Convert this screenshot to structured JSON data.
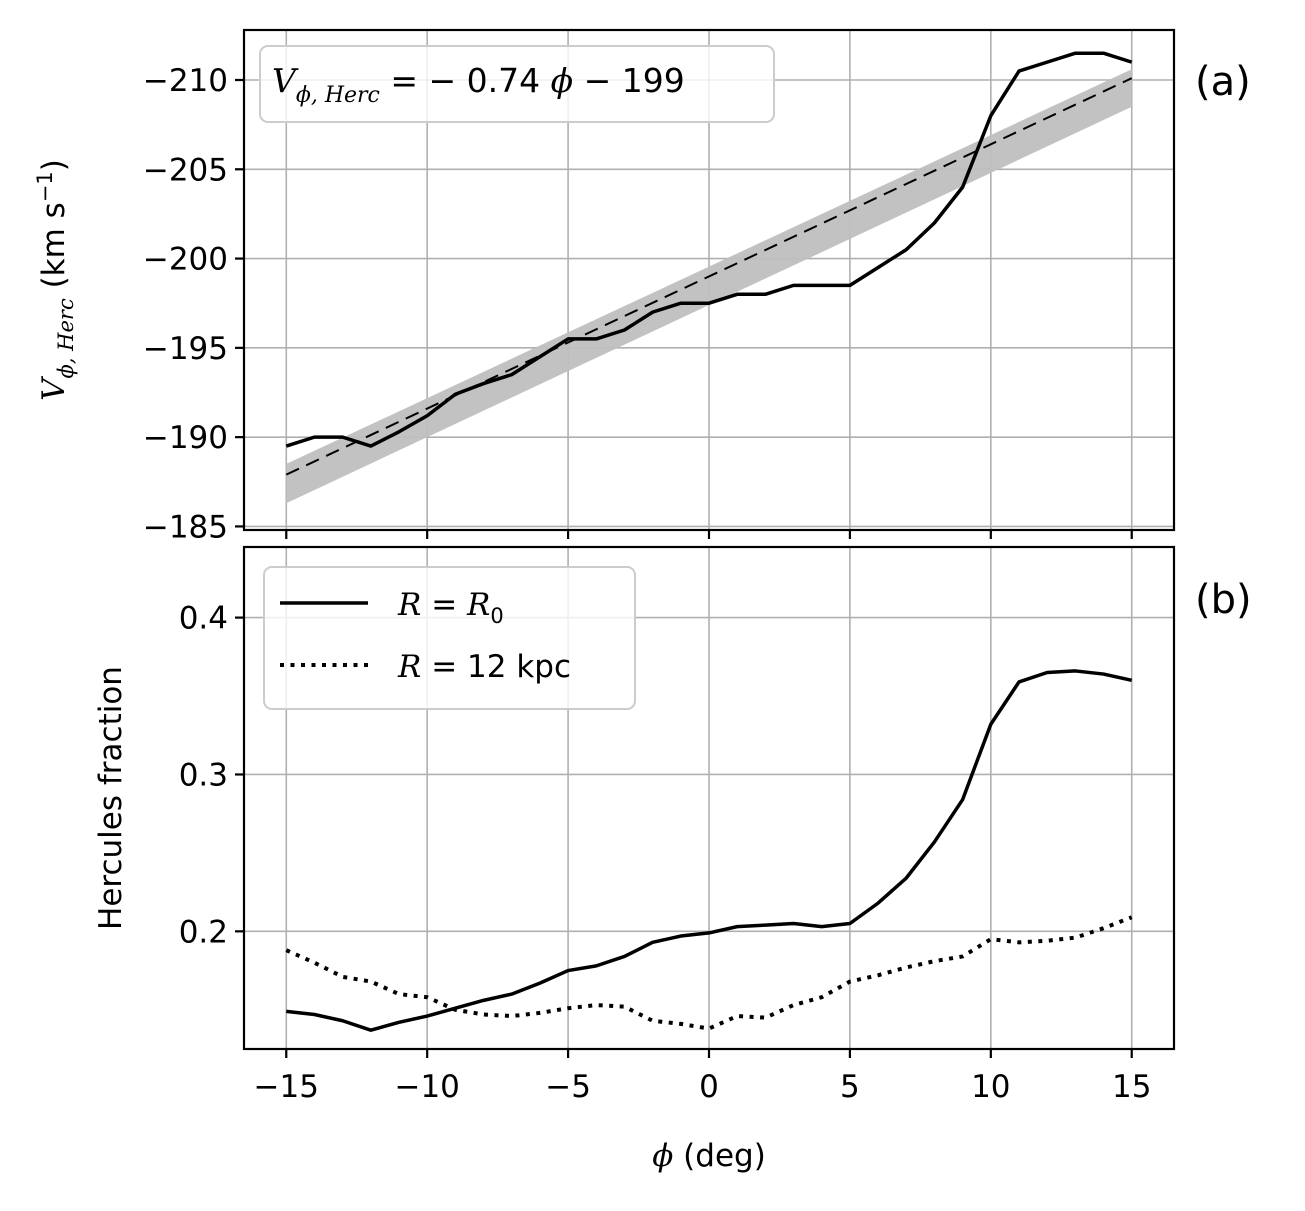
{
  "chart_data": [
    {
      "type": "line",
      "panel_tag": "(a)",
      "ylabel": "V_{ϕ, Herc} (km s⁻¹)",
      "ylabel_parts": {
        "symbol": "V",
        "sub": "ϕ, Herc",
        "units": " (km s",
        "sup": "−1",
        "close": ")"
      },
      "xlim": [
        -16.5,
        16.5
      ],
      "ylim": [
        -212.8,
        -184.8
      ],
      "y_inverted": true,
      "grid": true,
      "y_ticks": [
        -210,
        -205,
        -200,
        -195,
        -190,
        -185
      ],
      "y_tick_labels": [
        "−210",
        "−205",
        "−200",
        "−195",
        "−190",
        "−185"
      ],
      "x_ticks": [
        -15,
        -10,
        -5,
        0,
        5,
        10,
        15
      ],
      "annotation": {
        "parts": {
          "symbol": "V",
          "sub": "ϕ, Herc",
          "eq": " = − 0.74 ",
          "phi": "ϕ",
          "rest": " − 199"
        },
        "placement": "top-left"
      },
      "fit_line": {
        "slope": -0.74,
        "intercept": -199,
        "style": "dashed",
        "color": "#000000"
      },
      "fit_band": {
        "lower": [
          -188.5,
          -210.6
        ],
        "upper": [
          -186.3,
          -208.5
        ],
        "x_range": [
          -15,
          15
        ],
        "color": "#bfbfbf"
      },
      "series": [
        {
          "style": "solid",
          "color": "#000000",
          "x": [
            -15,
            -14,
            -13,
            -12,
            -11,
            -10,
            -9,
            -8,
            -7,
            -6,
            -5,
            -4,
            -3,
            -2,
            -1,
            0,
            1,
            2,
            3,
            4,
            5,
            6,
            7,
            8,
            9,
            10,
            11,
            12,
            13,
            14,
            15
          ],
          "y": [
            -189.5,
            -190,
            -190,
            -189.5,
            -190.3,
            -191.2,
            -192.4,
            -193,
            -193.5,
            -194.5,
            -195.5,
            -195.5,
            -196,
            -197,
            -197.5,
            -197.5,
            -198,
            -198,
            -198.5,
            -198.5,
            -198.5,
            -199.5,
            -200.5,
            -202,
            -204,
            -208,
            -210.5,
            -211,
            -211.5,
            -211.5,
            -211
          ]
        }
      ]
    },
    {
      "type": "line",
      "panel_tag": "(b)",
      "ylabel": "Hercules fraction",
      "xlabel": "ϕ (deg)",
      "xlabel_parts": {
        "symbol": "ϕ",
        "rest": " (deg)"
      },
      "xlim": [
        -16.5,
        16.5
      ],
      "ylim": [
        0.125,
        0.445
      ],
      "grid": true,
      "x_ticks": [
        -15,
        -10,
        -5,
        0,
        5,
        10,
        15
      ],
      "x_tick_labels": [
        "−15",
        "−10",
        "−5",
        "0",
        "5",
        "10",
        "15"
      ],
      "y_ticks": [
        0.2,
        0.3,
        0.4
      ],
      "y_tick_labels": [
        "0.2",
        "0.3",
        "0.4"
      ],
      "legend_placement": "top-left",
      "series": [
        {
          "name": "R = R₀",
          "legend_parts": {
            "symbol": "R",
            "eq": " = ",
            "rhs": "R",
            "sub": "0",
            "tail": ""
          },
          "style": "solid",
          "color": "#000000",
          "x": [
            -15,
            -14,
            -13,
            -12,
            -11,
            -10,
            -9,
            -8,
            -7,
            -6,
            -5,
            -4,
            -3,
            -2,
            -1,
            0,
            1,
            2,
            3,
            4,
            5,
            6,
            7,
            8,
            9,
            10,
            11,
            12,
            13,
            14,
            15
          ],
          "y": [
            0.149,
            0.147,
            0.143,
            0.137,
            0.142,
            0.146,
            0.151,
            0.156,
            0.16,
            0.167,
            0.175,
            0.178,
            0.184,
            0.193,
            0.197,
            0.199,
            0.203,
            0.204,
            0.205,
            0.203,
            0.205,
            0.218,
            0.234,
            0.257,
            0.284,
            0.332,
            0.359,
            0.365,
            0.366,
            0.364,
            0.36
          ]
        },
        {
          "name": "R = 12 kpc",
          "legend_parts": {
            "symbol": "R",
            "eq": " = ",
            "rhs": "12",
            "sub": "",
            "tail": " kpc"
          },
          "style": "dotted",
          "color": "#000000",
          "x": [
            -15,
            -14,
            -13,
            -12,
            -11,
            -10,
            -9,
            -8,
            -7,
            -6,
            -5,
            -4,
            -3,
            -2,
            -1,
            0,
            1,
            2,
            3,
            4,
            5,
            6,
            7,
            8,
            9,
            10,
            11,
            12,
            13,
            14,
            15
          ],
          "y": [
            0.188,
            0.18,
            0.171,
            0.168,
            0.16,
            0.158,
            0.15,
            0.147,
            0.146,
            0.148,
            0.151,
            0.153,
            0.152,
            0.143,
            0.141,
            0.138,
            0.146,
            0.145,
            0.153,
            0.158,
            0.168,
            0.172,
            0.177,
            0.181,
            0.184,
            0.195,
            0.193,
            0.194,
            0.196,
            0.202,
            0.209
          ]
        }
      ]
    }
  ]
}
